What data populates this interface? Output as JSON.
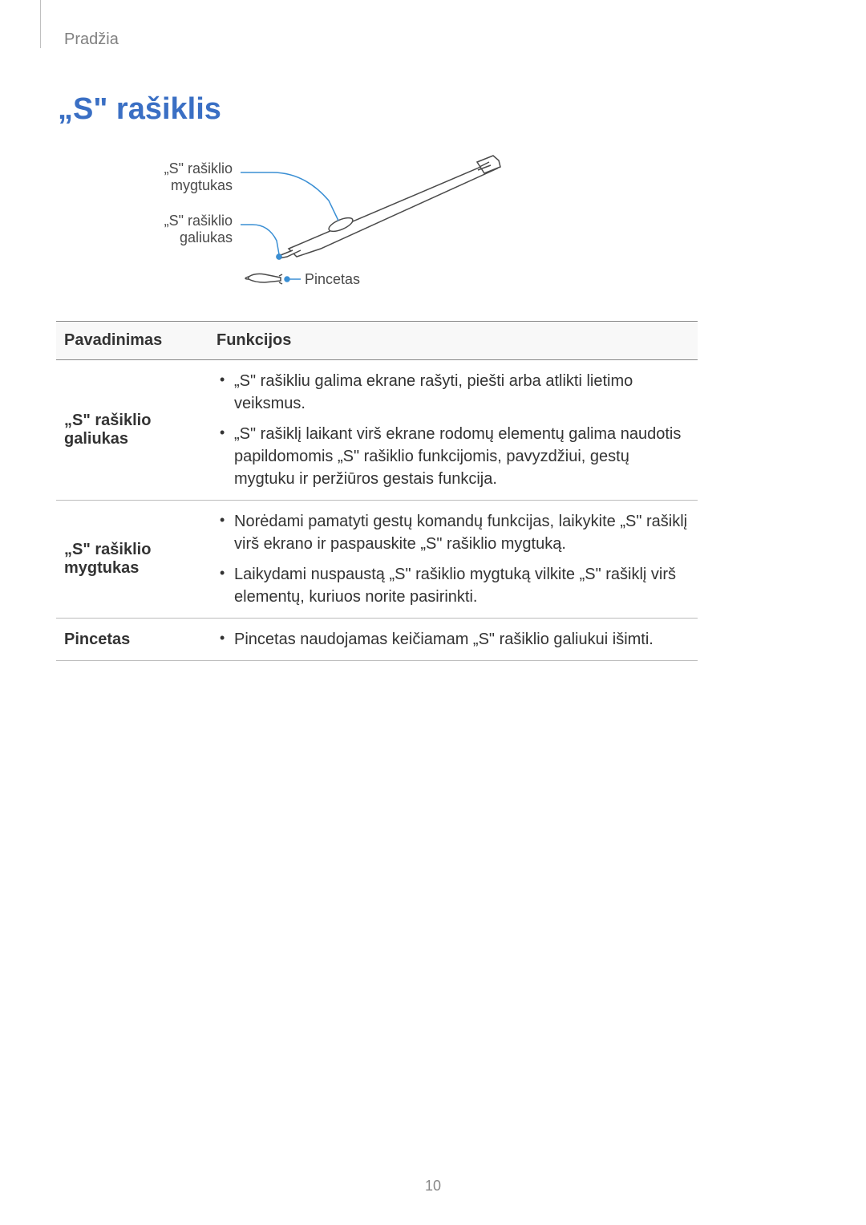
{
  "breadcrumb": "Pradžia",
  "title": "„S\" rašiklis",
  "diagram": {
    "label_button": "„S\" rašiklio\nmygtukas",
    "label_tip": "„S\" rašiklio\ngaliukas",
    "label_tweezers": "Pincetas",
    "pen_stroke": "#4a4a4a",
    "leader_stroke": "#3a8fd4"
  },
  "table": {
    "header_name": "Pavadinimas",
    "header_func": "Funkcijos",
    "rows": [
      {
        "name": "„S\" rašiklio galiukas",
        "items": [
          "„S\" rašikliu galima ekrane rašyti, piešti arba atlikti lietimo veiksmus.",
          "„S\" rašiklį laikant virš ekrane rodomų elementų galima naudotis papildomomis „S\" rašiklio funkcijomis, pavyzdžiui, gestų mygtuku ir peržiūros gestais funkcija."
        ]
      },
      {
        "name": "„S\" rašiklio mygtukas",
        "items": [
          "Norėdami pamatyti gestų komandų funkcijas, laikykite „S\" rašiklį virš ekrano ir paspauskite „S\" rašiklio mygtuką.",
          "Laikydami nuspaustą „S\" rašiklio mygtuką vilkite „S\" rašiklį virš elementų, kuriuos norite pasirinkti."
        ]
      },
      {
        "name": "Pincetas",
        "items": [
          "Pincetas naudojamas keičiamam „S\" rašiklio galiukui išimti."
        ]
      }
    ]
  },
  "page_number": "10"
}
